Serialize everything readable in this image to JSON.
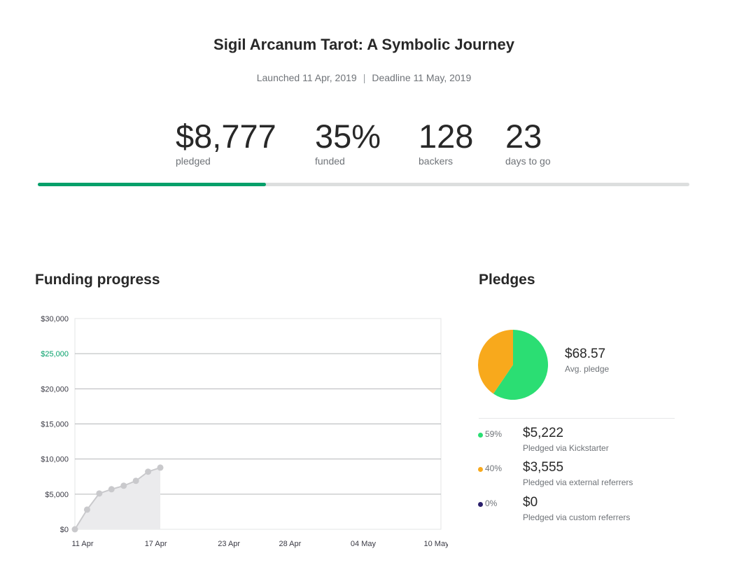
{
  "header": {
    "title": "Sigil Arcanum Tarot: A Symbolic Journey",
    "launched": "Launched 11 Apr, 2019",
    "separator": "|",
    "deadline": "Deadline 11 May, 2019"
  },
  "stats": {
    "pledged": {
      "value": "$8,777",
      "label": "pledged"
    },
    "funded": {
      "value": "35%",
      "label": "funded"
    },
    "backers": {
      "value": "128",
      "label": "backers"
    },
    "days": {
      "value": "23",
      "label": "days to go"
    }
  },
  "progress": {
    "fraction": 0.35,
    "color": "#05a06a"
  },
  "funding_progress": {
    "title": "Funding progress"
  },
  "pledges": {
    "title": "Pledges",
    "avg_value": "$68.57",
    "avg_label": "Avg. pledge",
    "items": [
      {
        "pct": "59%",
        "amount": "$5,222",
        "label": "Pledged via Kickstarter",
        "color": "#2bde73"
      },
      {
        "pct": "40%",
        "amount": "$3,555",
        "label": "Pledged via external referrers",
        "color": "#f8a91c"
      },
      {
        "pct": "0%",
        "amount": "$0",
        "label": "Pledged via custom referrers",
        "color": "#2a1f6b"
      }
    ]
  },
  "chart_data": [
    {
      "type": "area",
      "title": "Funding progress",
      "xlabel": "",
      "ylabel": "",
      "x": [
        "2019-04-11",
        "2019-04-12",
        "2019-04-13",
        "2019-04-14",
        "2019-04-15",
        "2019-04-16",
        "2019-04-17",
        "2019-04-18"
      ],
      "values": [
        0,
        2800,
        5100,
        5700,
        6200,
        6900,
        8200,
        8777
      ],
      "xlim": [
        "2019-04-11",
        "2019-05-11"
      ],
      "ylim": [
        0,
        30000
      ],
      "yticks": [
        "$0",
        "$5,000",
        "$10,000",
        "$15,000",
        "$20,000",
        "$25,000",
        "$30,000"
      ],
      "goal_tick": "$25,000",
      "goal_color": "#05a06a",
      "xticks": [
        {
          "label": "11 Apr",
          "date": "2019-04-11"
        },
        {
          "label": "17 Apr",
          "date": "2019-04-17"
        },
        {
          "label": "23 Apr",
          "date": "2019-04-23"
        },
        {
          "label": "28 Apr",
          "date": "2019-04-28"
        },
        {
          "label": "04 May",
          "date": "2019-05-04"
        },
        {
          "label": "10 May",
          "date": "2019-05-10"
        }
      ],
      "grid": true,
      "line_color": "#c9c9cc",
      "fill_color": "#ebebed"
    },
    {
      "type": "pie",
      "categories": [
        "Pledged via Kickstarter",
        "Pledged via external referrers",
        "Pledged via custom referrers"
      ],
      "values": [
        5222,
        3555,
        0
      ],
      "colors": [
        "#2bde73",
        "#f8a91c",
        "#2a1f6b"
      ]
    }
  ]
}
